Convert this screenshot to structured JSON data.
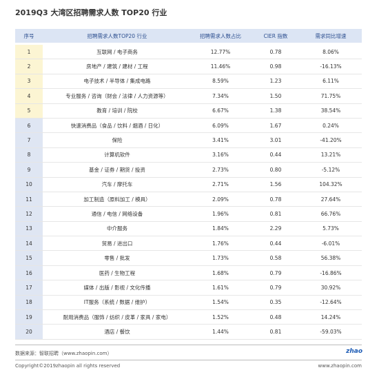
{
  "header": {
    "title": "2019Q3 大湾区招聘需求人数 TOP20 行业"
  },
  "table": {
    "columns": [
      "序号",
      "招聘需求人数TOP20 行业",
      "招聘需求人数占比",
      "CIER 指数",
      "需求同比增速"
    ],
    "rows": [
      [
        "1",
        "互联网 / 电子商务",
        "12.77%",
        "0.78",
        "8.06%"
      ],
      [
        "2",
        "房地产 / 建筑 / 建材 / 工程",
        "11.46%",
        "0.98",
        "-16.13%"
      ],
      [
        "3",
        "电子技术 / 半导体 / 集成电路",
        "8.59%",
        "1.23",
        "6.11%"
      ],
      [
        "4",
        "专业服务 / 咨询（财会 / 法律 / 人力资源等）",
        "7.34%",
        "1.50",
        "71.75%"
      ],
      [
        "5",
        "教育 / 培训 / 院校",
        "6.67%",
        "1.38",
        "38.54%"
      ],
      [
        "6",
        "快速消费品（食品 / 饮料 / 烟酒 / 日化）",
        "6.09%",
        "1.67",
        "0.24%"
      ],
      [
        "7",
        "保险",
        "3.41%",
        "3.01",
        "-41.20%"
      ],
      [
        "8",
        "计算机软件",
        "3.16%",
        "0.44",
        "13.21%"
      ],
      [
        "9",
        "基金 / 证券 / 期货 / 投资",
        "2.73%",
        "0.80",
        "-5.12%"
      ],
      [
        "10",
        "汽车 / 摩托车",
        "2.71%",
        "1.56",
        "104.32%"
      ],
      [
        "11",
        "加工制造（原料加工 / 模具）",
        "2.09%",
        "0.78",
        "27.64%"
      ],
      [
        "12",
        "通信 / 电信 / 网络设备",
        "1.96%",
        "0.81",
        "66.76%"
      ],
      [
        "13",
        "中介服务",
        "1.84%",
        "2.29",
        "5.73%"
      ],
      [
        "14",
        "贸易 / 进出口",
        "1.76%",
        "0.44",
        "-6.01%"
      ],
      [
        "15",
        "零售 / 批发",
        "1.73%",
        "0.58",
        "56.38%"
      ],
      [
        "16",
        "医药 / 生物工程",
        "1.68%",
        "0.79",
        "-16.86%"
      ],
      [
        "17",
        "媒体 / 出版 / 影视 / 文化传播",
        "1.61%",
        "0.79",
        "30.92%"
      ],
      [
        "18",
        "IT服务（系统 / 数据 / 维护）",
        "1.54%",
        "0.35",
        "-12.64%"
      ],
      [
        "19",
        "耐用消费品（服饰 / 纺织 / 皮革 / 家具 / 家电）",
        "1.52%",
        "0.48",
        "14.24%"
      ],
      [
        "20",
        "酒店 / 餐饮",
        "1.44%",
        "0.81",
        "-59.03%"
      ]
    ]
  },
  "footer": {
    "source": "数据来源：智联招聘（www.zhaopin.com）",
    "copyright": "Copyright©2019zhaopin all rights reserved",
    "website": "www.zhaopin.com",
    "logo": "zhao"
  }
}
